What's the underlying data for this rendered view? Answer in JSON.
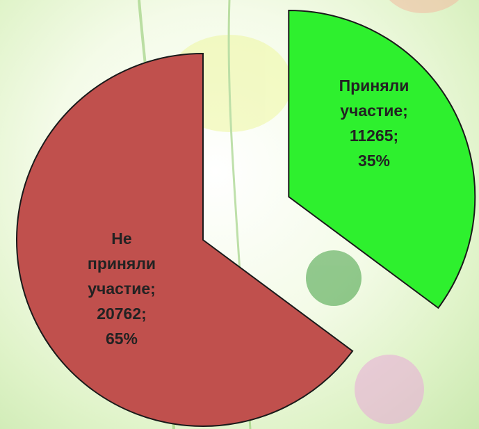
{
  "chart_data": {
    "type": "pie",
    "categories": [
      "Приняли участие;",
      "Не приняли участие;"
    ],
    "values": [
      11265,
      20762
    ],
    "value_labels": [
      "11265;",
      "20762;"
    ],
    "percent_labels": [
      "35%",
      "65%"
    ],
    "colors": [
      "#2ef02e",
      "#c0504d"
    ]
  }
}
